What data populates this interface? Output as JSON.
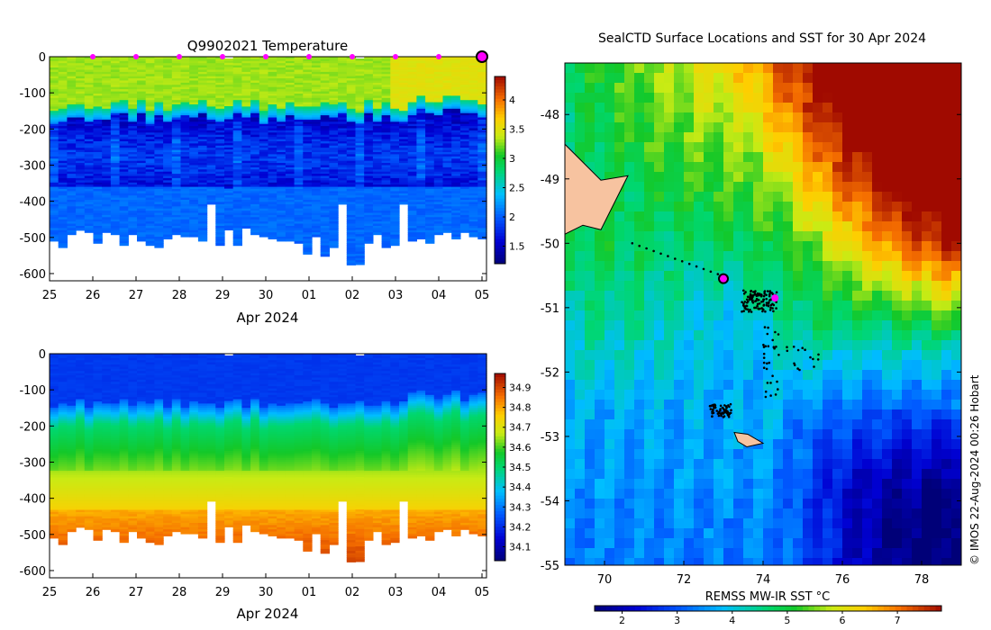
{
  "chart_data": [
    {
      "type": "heatmap",
      "title": "Q9902021  Temperature",
      "xlabel": "Apr 2024",
      "ylabel": "",
      "ylim": [
        -620,
        0
      ],
      "y_ticks": [
        "0",
        "-100",
        "-200",
        "-300",
        "-400",
        "-500",
        "-600"
      ],
      "x_ticks": [
        "25",
        "26",
        "27",
        "28",
        "29",
        "30",
        "01",
        "02",
        "03",
        "04",
        "05"
      ],
      "colorbar": {
        "min": 1.2,
        "max": 4.4,
        "ticks": [
          "1.5",
          "2",
          "2.5",
          "3",
          "3.5",
          "4"
        ]
      },
      "profile_marker_days": [
        26,
        27,
        28,
        29,
        30,
        31,
        32,
        33,
        34
      ],
      "latest_profile_day": 35,
      "profile_max_depth_range": [
        -580,
        -470
      ],
      "layers": [
        {
          "depth_from": 0,
          "depth_to": -120,
          "value": 3.3
        },
        {
          "depth_from": -120,
          "depth_to": -160,
          "value": 2.8
        },
        {
          "depth_from": -160,
          "depth_to": -350,
          "value": 1.9
        },
        {
          "depth_from": -350,
          "depth_to": -600,
          "value": 2.1
        }
      ]
    },
    {
      "type": "heatmap",
      "title": "",
      "xlabel": "Apr 2024",
      "ylabel": "",
      "ylim": [
        -620,
        0
      ],
      "y_ticks": [
        "0",
        "-100",
        "-200",
        "-300",
        "-400",
        "-500",
        "-600"
      ],
      "x_ticks": [
        "25",
        "26",
        "27",
        "28",
        "29",
        "30",
        "01",
        "02",
        "03",
        "04",
        "05"
      ],
      "colorbar": {
        "min": 34.03,
        "max": 34.97,
        "ticks": [
          "34.1",
          "34.2",
          "34.3",
          "34.4",
          "34.5",
          "34.6",
          "34.7",
          "34.8",
          "34.9"
        ]
      },
      "layers": [
        {
          "depth_from": 0,
          "depth_to": -120,
          "value": 34.2
        },
        {
          "depth_from": -120,
          "depth_to": -220,
          "value": 34.35
        },
        {
          "depth_from": -220,
          "depth_to": -300,
          "value": 34.55
        },
        {
          "depth_from": -300,
          "depth_to": -450,
          "value": 34.65
        },
        {
          "depth_from": -450,
          "depth_to": -600,
          "value": 34.8
        }
      ]
    },
    {
      "type": "heatmap",
      "title": "SealCTD Surface Locations and SST for 30 Apr 2024",
      "xlabel": "",
      "ylabel": "",
      "xlim": [
        69,
        79
      ],
      "ylim": [
        -55,
        -47.2
      ],
      "x_ticks": [
        "70",
        "72",
        "74",
        "76",
        "78"
      ],
      "y_ticks": [
        "-48",
        "-49",
        "-50",
        "-51",
        "-52",
        "-53",
        "-54",
        "-55"
      ],
      "colorbar": {
        "label": "REMSS MW-IR SST °C",
        "min": 1.5,
        "max": 7.8,
        "ticks": [
          "2",
          "3",
          "4",
          "5",
          "6",
          "7"
        ]
      },
      "current_position": {
        "lon": 74.3,
        "lat": -50.85
      },
      "deployment_position": {
        "lon": 73.0,
        "lat": -50.55
      },
      "islands": [
        "Kerguelen",
        "Heard Island"
      ],
      "credit": "© IMOS 22-Aug-2024 00:26 Hobart"
    }
  ]
}
